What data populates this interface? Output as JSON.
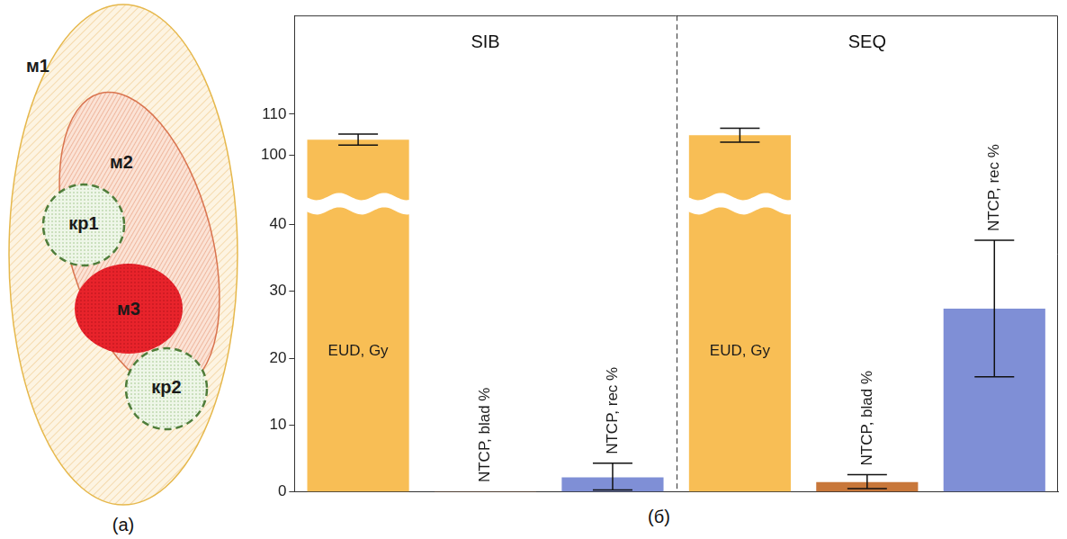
{
  "diagram": {
    "label": "(а)",
    "regions": [
      "м1",
      "м2",
      "м3",
      "кр1",
      "кр2"
    ]
  },
  "chart_data": {
    "type": "bar",
    "label": "(б)",
    "categories": [
      "EUD, Gy",
      "NTCP, blad %",
      "NTCP, rec %",
      "EUD, Gy",
      "NTCP, blad %",
      "NTCP, rec %"
    ],
    "groups": [
      {
        "label": "SIB",
        "count": 3
      },
      {
        "label": "SEQ",
        "count": 3
      }
    ],
    "values": [
      103.8,
      0.1,
      2.2,
      104.9,
      1.5,
      27.4
    ],
    "error_low": [
      102.5,
      null,
      0.3,
      103.2,
      0.5,
      17.2
    ],
    "error_high": [
      105.2,
      null,
      4.3,
      106.6,
      2.6,
      37.6
    ],
    "colors": [
      "#f8be55",
      "#c8773a",
      "#7f8fd6",
      "#f8be55",
      "#c8773a",
      "#7f8fd6"
    ],
    "ylim": [
      0,
      134
    ],
    "y_break": [
      42,
      90
    ],
    "yticks": [
      0,
      10,
      20,
      30,
      40,
      100,
      110
    ],
    "grid": false,
    "tick_labels": "y"
  }
}
